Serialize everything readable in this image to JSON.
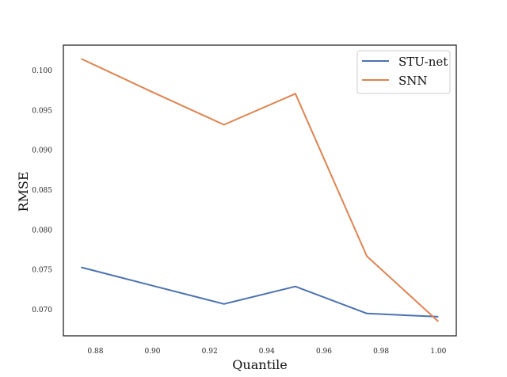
{
  "chart_data": {
    "type": "line",
    "title": "",
    "xlabel": "Quantile",
    "ylabel": "RMSE",
    "x": [
      0.875,
      0.9,
      0.925,
      0.95,
      0.975,
      1.0
    ],
    "xlim": [
      0.8688,
      1.0063
    ],
    "ylim": [
      0.0667,
      0.1032
    ],
    "xticks": [
      0.88,
      0.9,
      0.92,
      0.94,
      0.96,
      0.98,
      1.0
    ],
    "xtick_labels": [
      "0.88",
      "0.90",
      "0.92",
      "0.94",
      "0.96",
      "0.98",
      "1.00"
    ],
    "yticks": [
      0.07,
      0.075,
      0.08,
      0.085,
      0.09,
      0.095,
      0.1
    ],
    "ytick_labels": [
      "0.070",
      "0.075",
      "0.080",
      "0.085",
      "0.090",
      "0.095",
      "0.100"
    ],
    "grid": false,
    "legend_position": "top-right",
    "series": [
      {
        "name": "STU-net",
        "color": "#4c72b0",
        "values": [
          0.0753,
          0.073,
          0.0707,
          0.0729,
          0.0695,
          0.0691
        ]
      },
      {
        "name": "SNN",
        "color": "#dd8452",
        "values": [
          0.1015,
          0.0973,
          0.0932,
          0.0971,
          0.0767,
          0.0685
        ]
      }
    ]
  }
}
